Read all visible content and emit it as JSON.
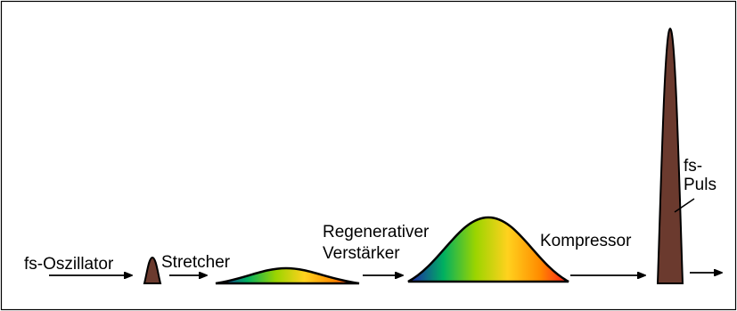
{
  "labels": {
    "oscillator": "fs-Oszillator",
    "stretcher": "Stretcher",
    "amplifier_line1": "Regenerativer",
    "amplifier_line2": "Verstärker",
    "compressor": "Kompressor",
    "pulse_line1": "fs-",
    "pulse_line2": "Puls"
  },
  "colors": {
    "pulse_fill": "#6b3a2e",
    "outline": "#000000",
    "spectrum": [
      "#1f1fb0",
      "#00b060",
      "#9bd400",
      "#ffd21e",
      "#ff8c00",
      "#ff1a1a"
    ]
  }
}
